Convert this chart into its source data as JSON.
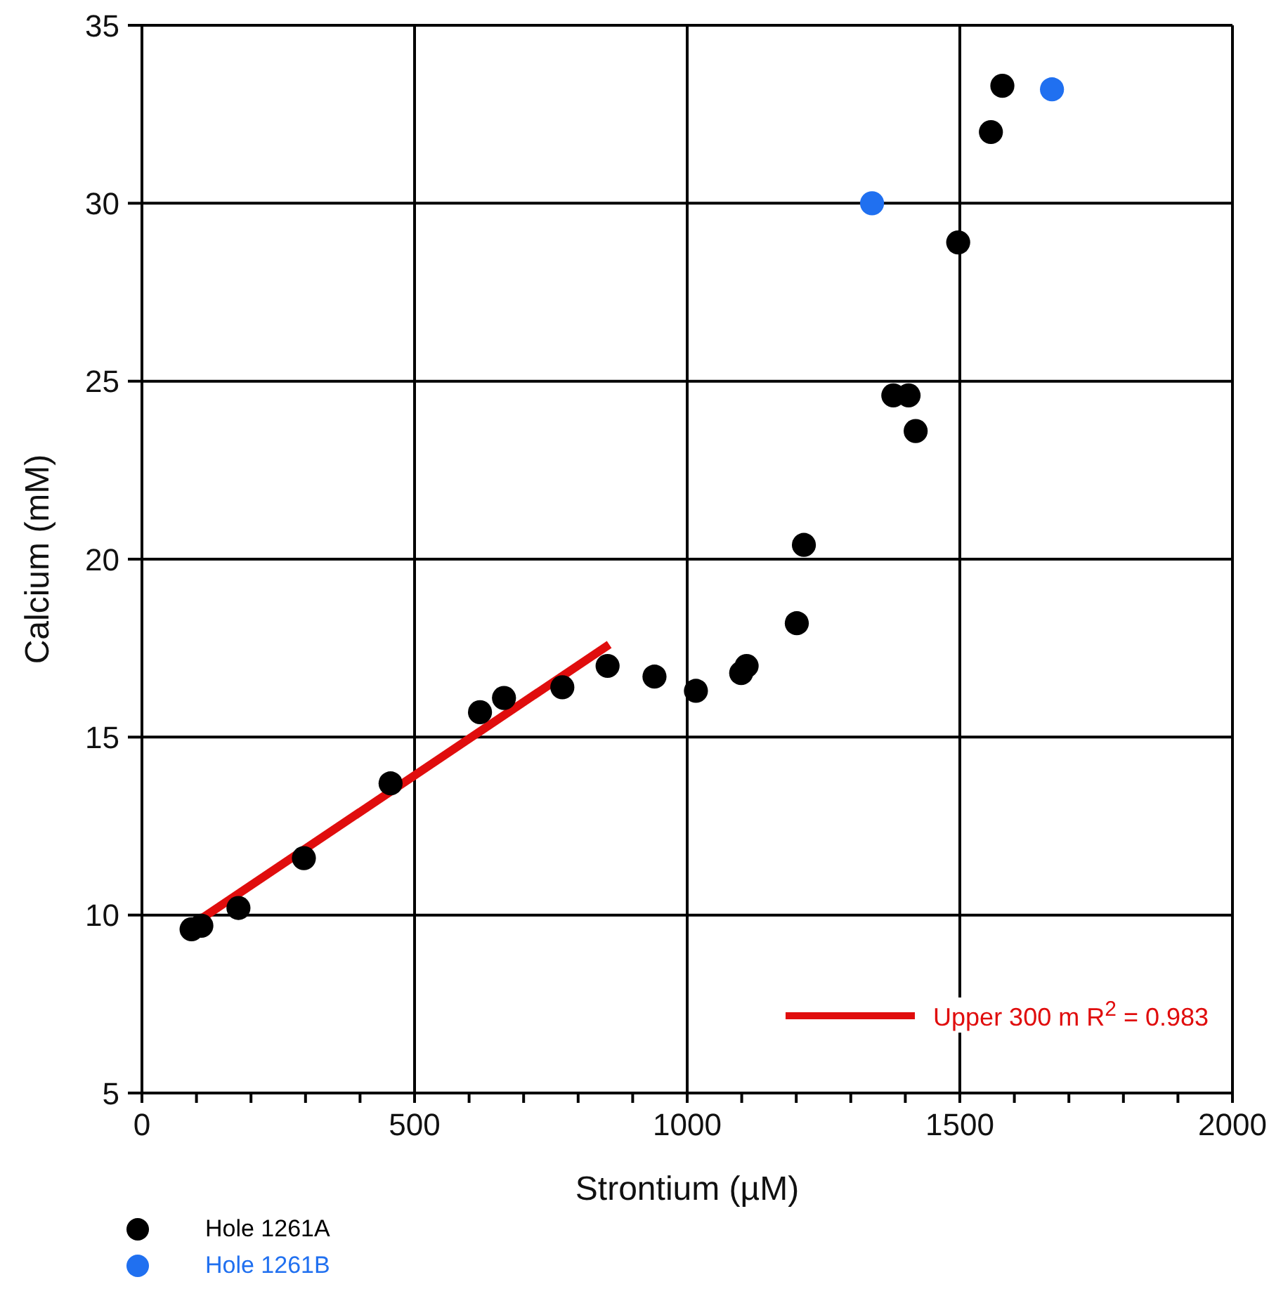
{
  "chart_data": {
    "type": "scatter",
    "xlabel": "Strontium (µM)",
    "ylabel": "Calcium (mM)",
    "series": [
      {
        "name": "Hole 1261A",
        "color": "#000000",
        "x": [
          91,
          109,
          177,
          297,
          456,
          620,
          664,
          771,
          854,
          940,
          1016,
          1099,
          1109,
          1201,
          1214,
          1378,
          1406,
          1419,
          1497,
          1557,
          1578
        ],
        "values": [
          9.6,
          9.7,
          10.2,
          11.6,
          13.7,
          15.7,
          16.1,
          16.4,
          17.0,
          16.7,
          16.3,
          16.8,
          17.0,
          18.2,
          20.4,
          24.6,
          24.6,
          23.6,
          28.9,
          32.0,
          33.3
        ]
      },
      {
        "name": "Hole 1261B",
        "color": "#2070f0",
        "x": [
          1339,
          1669
        ],
        "values": [
          30.0,
          33.2
        ]
      },
      {
        "name": "Upper 300 m  R$^{2}$ = 0.983",
        "type": "line",
        "marker": "none",
        "color": "#e00d0d",
        "x": [
          109,
          857
        ],
        "values": [
          9.9,
          17.6
        ]
      }
    ],
    "xlim": [
      0,
      2000
    ],
    "xticks": [
      0,
      {
        "value": 100,
        "label": null
      },
      {
        "value": 200,
        "label": null
      },
      {
        "value": 300,
        "label": null
      },
      {
        "value": 400,
        "label": null
      },
      500,
      {
        "value": 600,
        "label": null
      },
      {
        "value": 700,
        "label": null
      },
      {
        "value": 800,
        "label": null
      },
      {
        "value": 900,
        "label": null
      },
      1000,
      {
        "value": 1100,
        "label": null
      },
      {
        "value": 1200,
        "label": null
      },
      {
        "value": 1300,
        "label": null
      },
      {
        "value": 1400,
        "label": null
      },
      1500,
      {
        "value": 1600,
        "label": null
      },
      {
        "value": 1700,
        "label": null
      },
      {
        "value": 1800,
        "label": null
      },
      {
        "value": 1900,
        "label": null
      },
      2000
    ],
    "ylim": [
      5,
      35
    ],
    "yticks": [
      5,
      10,
      15,
      20,
      25,
      30,
      35
    ],
    "grid": true,
    "legend": "bottom left",
    "marker": "circle",
    "line_style": "solid"
  }
}
